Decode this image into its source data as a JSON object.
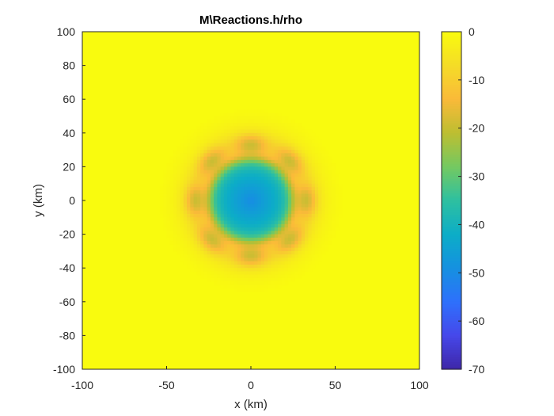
{
  "chart_data": {
    "type": "heatmap",
    "title": "M\\Reactions.h/rho",
    "xlabel": "x (km)",
    "ylabel": "y (km)",
    "xlim": [
      -100,
      100
    ],
    "ylim": [
      -100,
      100
    ],
    "x_ticks": [
      "-100",
      "-50",
      "0",
      "50",
      "100"
    ],
    "y_ticks": [
      "100",
      "80",
      "60",
      "40",
      "20",
      "0",
      "-20",
      "-40",
      "-60",
      "-80",
      "-100"
    ],
    "colorbar": {
      "colormap": "parula",
      "clim": [
        -70,
        0
      ],
      "ticks": [
        "0",
        "-10",
        "-20",
        "-30",
        "-40",
        "-50",
        "-60",
        "-70"
      ]
    },
    "field": {
      "background_value": 0,
      "center": [
        0,
        0
      ],
      "center_value": -50,
      "core_radius_km": 25,
      "ring": {
        "radius_km": 33,
        "lobes": 8,
        "lobe_value": -14
      },
      "halo_radius_km": 45,
      "halo_value": -6
    },
    "grid": false,
    "box": true
  }
}
